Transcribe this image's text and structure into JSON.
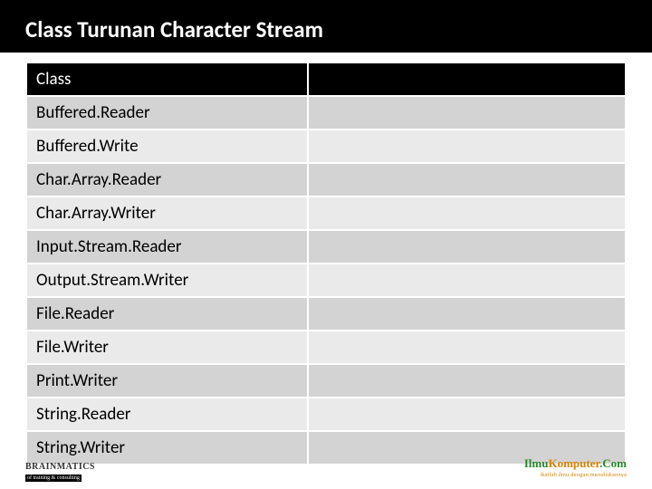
{
  "title": "Class Turunan Character Stream",
  "table": {
    "header": {
      "col1": "Class",
      "col2": ""
    },
    "header_bg": "#000000",
    "header_fg": "#ffffff",
    "row_even_bg": "#d3d3d3",
    "row_odd_bg": "#eaeaea",
    "border_color": "#ffffff",
    "font_size_pt": 14,
    "rows": [
      {
        "col1": "Buffered.Reader",
        "col2": ""
      },
      {
        "col1": "Buffered.Write",
        "col2": ""
      },
      {
        "col1": "Char.Array.Reader",
        "col2": ""
      },
      {
        "col1": "Char.Array.Writer",
        "col2": ""
      },
      {
        "col1": "Input.Stream.Reader",
        "col2": ""
      },
      {
        "col1": "Output.Stream.Writer",
        "col2": ""
      },
      {
        "col1": "File.Reader",
        "col2": ""
      },
      {
        "col1": "File.Writer",
        "col2": ""
      },
      {
        "col1": "Print.Writer",
        "col2": ""
      },
      {
        "col1": "String.Reader",
        "col2": ""
      },
      {
        "col1": "String.Writer",
        "col2": ""
      }
    ]
  },
  "footer": {
    "left_brand": "BRAINMATICS",
    "left_tag": "of training & consulting",
    "right_brand_1": "Ilmu",
    "right_brand_2": "Komputer",
    "right_brand_3": ".Com",
    "right_sub": "ikatlah ilmu dengan menuliskannya"
  },
  "colors": {
    "page_bg": "#ffffff",
    "title_bg": "#000000",
    "title_fg": "#ffffff"
  }
}
